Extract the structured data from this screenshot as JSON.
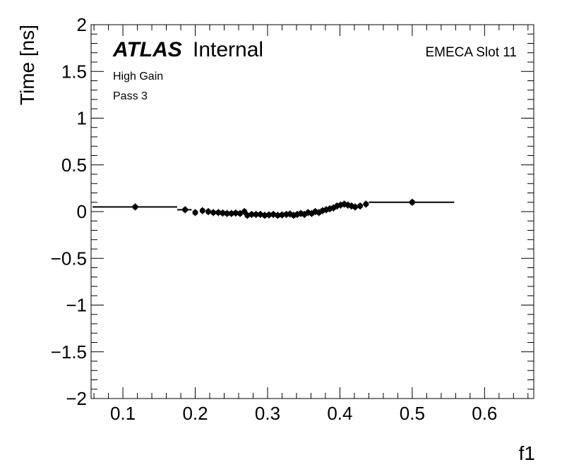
{
  "chart_data": {
    "type": "scatter",
    "title": "",
    "xlabel": "f1",
    "ylabel": "Time [ns]",
    "xlim": [
      0.056,
      0.668
    ],
    "ylim": [
      -2,
      2
    ],
    "xticks": [
      0.1,
      0.2,
      0.3,
      0.4,
      0.5,
      0.6
    ],
    "yticks": [
      -2,
      -1.5,
      -1,
      -0.5,
      0,
      0.5,
      1,
      1.5,
      2
    ],
    "xtick_labels": [
      "0.1",
      "0.2",
      "0.3",
      "0.4",
      "0.5",
      "0.6"
    ],
    "ytick_labels": [
      "−2",
      "−1.5",
      "−1",
      "−0.5",
      "0",
      "0.5",
      "1",
      "1.5",
      "2"
    ],
    "grid": false,
    "annotations": {
      "experiment": "ATLAS",
      "status": "Internal",
      "gain": "High Gain",
      "pass": "Pass 3",
      "region": "EMECA Slot 11"
    },
    "series": [
      {
        "marker": "filled-circle",
        "color": "#000000",
        "points": [
          {
            "x": 0.117,
            "y": 0.05,
            "xerr": [
              0.058,
              0.175
            ]
          },
          {
            "x": 0.186,
            "y": 0.02,
            "xerr": [
              0.175,
              0.195
            ]
          },
          {
            "x": 0.2,
            "y": -0.01
          },
          {
            "x": 0.21,
            "y": 0.01
          },
          {
            "x": 0.218,
            "y": 0.0
          },
          {
            "x": 0.225,
            "y": -0.01
          },
          {
            "x": 0.232,
            "y": -0.01
          },
          {
            "x": 0.238,
            "y": -0.015
          },
          {
            "x": 0.244,
            "y": -0.02
          },
          {
            "x": 0.25,
            "y": -0.02
          },
          {
            "x": 0.256,
            "y": -0.015
          },
          {
            "x": 0.262,
            "y": -0.02
          },
          {
            "x": 0.268,
            "y": 0.0
          },
          {
            "x": 0.272,
            "y": -0.04
          },
          {
            "x": 0.278,
            "y": -0.03
          },
          {
            "x": 0.284,
            "y": -0.03
          },
          {
            "x": 0.29,
            "y": -0.03
          },
          {
            "x": 0.296,
            "y": -0.04
          },
          {
            "x": 0.302,
            "y": -0.035
          },
          {
            "x": 0.308,
            "y": -0.03
          },
          {
            "x": 0.314,
            "y": -0.04
          },
          {
            "x": 0.32,
            "y": -0.035
          },
          {
            "x": 0.326,
            "y": -0.03
          },
          {
            "x": 0.331,
            "y": -0.025
          },
          {
            "x": 0.336,
            "y": -0.04
          },
          {
            "x": 0.341,
            "y": -0.03
          },
          {
            "x": 0.346,
            "y": -0.02
          },
          {
            "x": 0.351,
            "y": -0.03
          },
          {
            "x": 0.356,
            "y": -0.01
          },
          {
            "x": 0.361,
            "y": -0.02
          },
          {
            "x": 0.366,
            "y": 0.0
          },
          {
            "x": 0.371,
            "y": -0.01
          },
          {
            "x": 0.376,
            "y": 0.01
          },
          {
            "x": 0.381,
            "y": 0.02
          },
          {
            "x": 0.386,
            "y": 0.03
          },
          {
            "x": 0.391,
            "y": 0.04
          },
          {
            "x": 0.396,
            "y": 0.06
          },
          {
            "x": 0.401,
            "y": 0.07
          },
          {
            "x": 0.406,
            "y": 0.08
          },
          {
            "x": 0.411,
            "y": 0.07
          },
          {
            "x": 0.416,
            "y": 0.06
          },
          {
            "x": 0.421,
            "y": 0.05
          },
          {
            "x": 0.428,
            "y": 0.06
          },
          {
            "x": 0.436,
            "y": 0.08,
            "xerr": [
              0.432,
              0.44
            ]
          },
          {
            "x": 0.5,
            "y": 0.1,
            "xerr": [
              0.44,
              0.558
            ]
          }
        ]
      }
    ]
  }
}
